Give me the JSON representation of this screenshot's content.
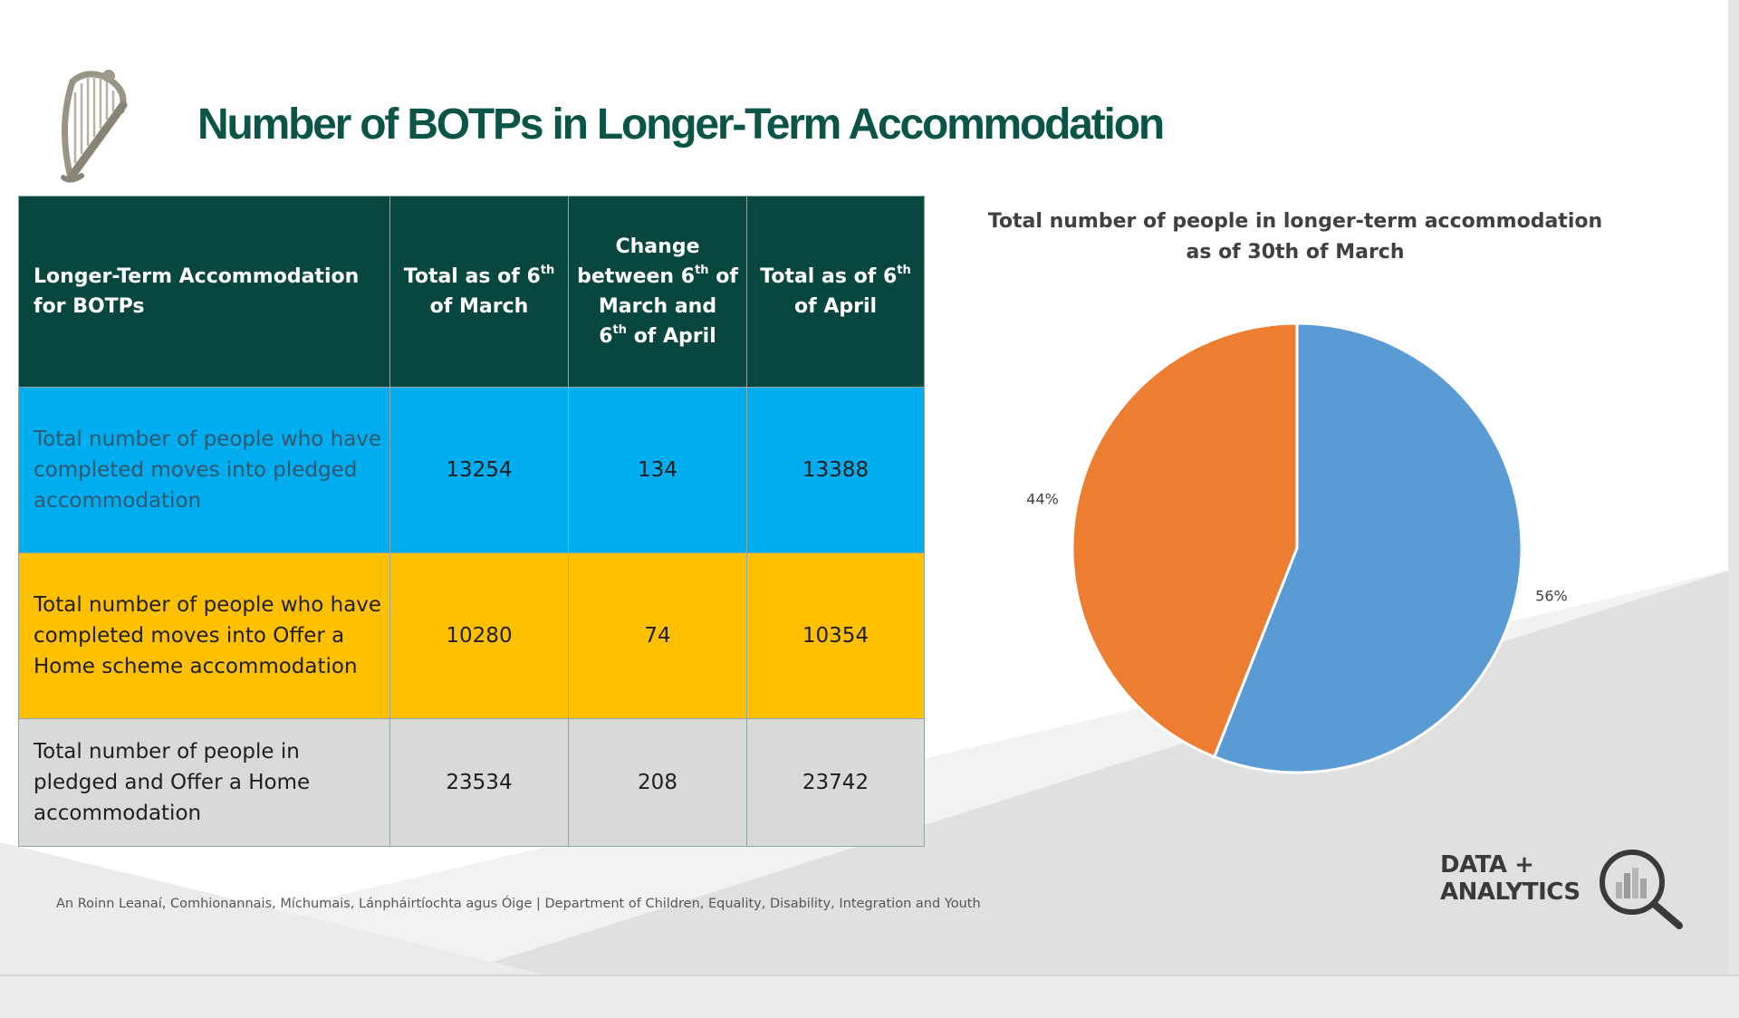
{
  "slide": {
    "title": "Number of BOTPs in Longer-Term Accommodation",
    "footer": "An Roinn Leanaí, Comhionannais, Míchumais, Lánpháirtíochta agus Óige | Department of Children, Equality, Disability, Integration and Youth",
    "logo": {
      "line1": "DATA +",
      "line2": "ANALYTICS",
      "icon": "magnifier-chart-icon"
    },
    "emblem_icon": "harp-icon"
  },
  "table": {
    "headers": [
      {
        "text": "Longer-Term Accommodation for BOTPs"
      },
      {
        "pre": "Total as of 6",
        "sup": "th",
        "post": " of March"
      },
      {
        "pre": "Change between 6",
        "sup": "th",
        "post": " of March and ",
        "pre2": "6",
        "sup2": "th",
        "post2": " of April"
      },
      {
        "pre": "Total as of 6",
        "sup": "th",
        "post": " of April"
      }
    ],
    "rows": [
      {
        "label": "Total number of people who have completed moves into pledged accommodation",
        "march": "13254",
        "change": "134",
        "april": "13388"
      },
      {
        "label": "Total number of people who have completed moves into Offer a Home scheme accommodation",
        "march": "10280",
        "change": "74",
        "april": "10354"
      },
      {
        "label": "Total number of people in pledged and Offer a Home accommodation",
        "march": "23534",
        "change": "208",
        "april": "23742"
      }
    ],
    "colors": {
      "header": "#07473f",
      "row1": "#00adef",
      "row2": "#ffc000",
      "row3": "#d9d9d9"
    }
  },
  "chart_data": {
    "type": "pie",
    "title": "Total number of people in longer-term accommodation as of 30th of March",
    "slices": [
      {
        "label": "56%",
        "value": 56,
        "color": "#5b9bd5"
      },
      {
        "label": "44%",
        "value": 44,
        "color": "#ed7d31"
      }
    ],
    "legend": "none"
  }
}
